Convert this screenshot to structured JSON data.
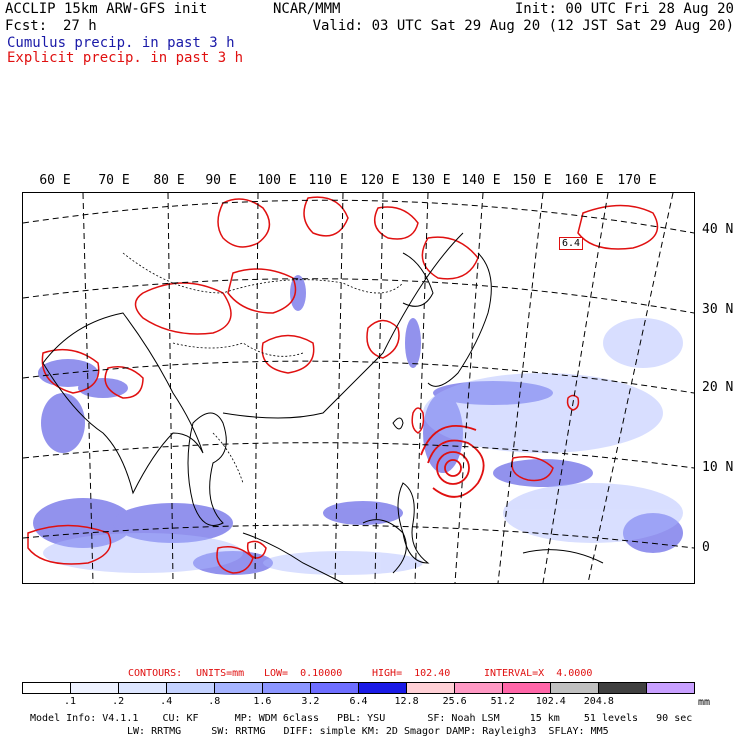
{
  "header": {
    "model": "ACCLIP 15km ARW-GFS init",
    "fcst_label": "Fcst:",
    "fcst_value": "27 h",
    "center": "NCAR/MMM",
    "init": "Init: 00 UTC Fri 28 Aug 20",
    "valid": "Valid: 03 UTC Sat 29 Aug 20 (12 JST Sat 29 Aug 20)",
    "field1": "Cumulus precip. in past 3 h",
    "field2": "Explicit precip. in past 3 h"
  },
  "longitude_labels": [
    "60 E",
    "70 E",
    "80 E",
    "90 E",
    "100 E",
    "110 E",
    "120 E",
    "130 E",
    "140 E",
    "150 E",
    "160 E",
    "170 E"
  ],
  "latitude_labels": [
    "40 N",
    "30 N",
    "20 N",
    "10 N",
    "0"
  ],
  "contour_label": "6.4",
  "contours_line": {
    "label": "CONTOURS:",
    "units": "UNITS=mm",
    "low": "LOW=  0.10000",
    "high": "HIGH=  102.40",
    "interval": "INTERVAL=X  4.0000"
  },
  "colorbar": {
    "levels": [
      ".1",
      ".2",
      ".4",
      ".8",
      "1.6",
      "3.2",
      "6.4",
      "12.8",
      "25.6",
      "51.2",
      "102.4",
      "204.8"
    ],
    "unit": "mm",
    "colors": [
      "#ffffff",
      "#eef2ff",
      "#dde6ff",
      "#c4d2ff",
      "#a6b4ff",
      "#8c96ff",
      "#6e6eff",
      "#1a1ae6",
      "#ffd0d6",
      "#ff99c4",
      "#ff66a8",
      "#c0c0c0",
      "#404040",
      "#c8a0ff"
    ]
  },
  "model_info": {
    "line1": "Model Info: V4.1.1    CU: KF      MP: WDM 6class   PBL: YSU       SF: Noah LSM     15 km    51 levels   90 sec",
    "line2": "LW: RRTMG     SW: RRTMG   DIFF: simple KM: 2D Smagor DAMP: Rayleigh3  SFLAY: MM5"
  },
  "colors": {
    "explicit_precip": "#e01010",
    "cumulus_precip": "#3333dd",
    "grid": "#000000"
  }
}
